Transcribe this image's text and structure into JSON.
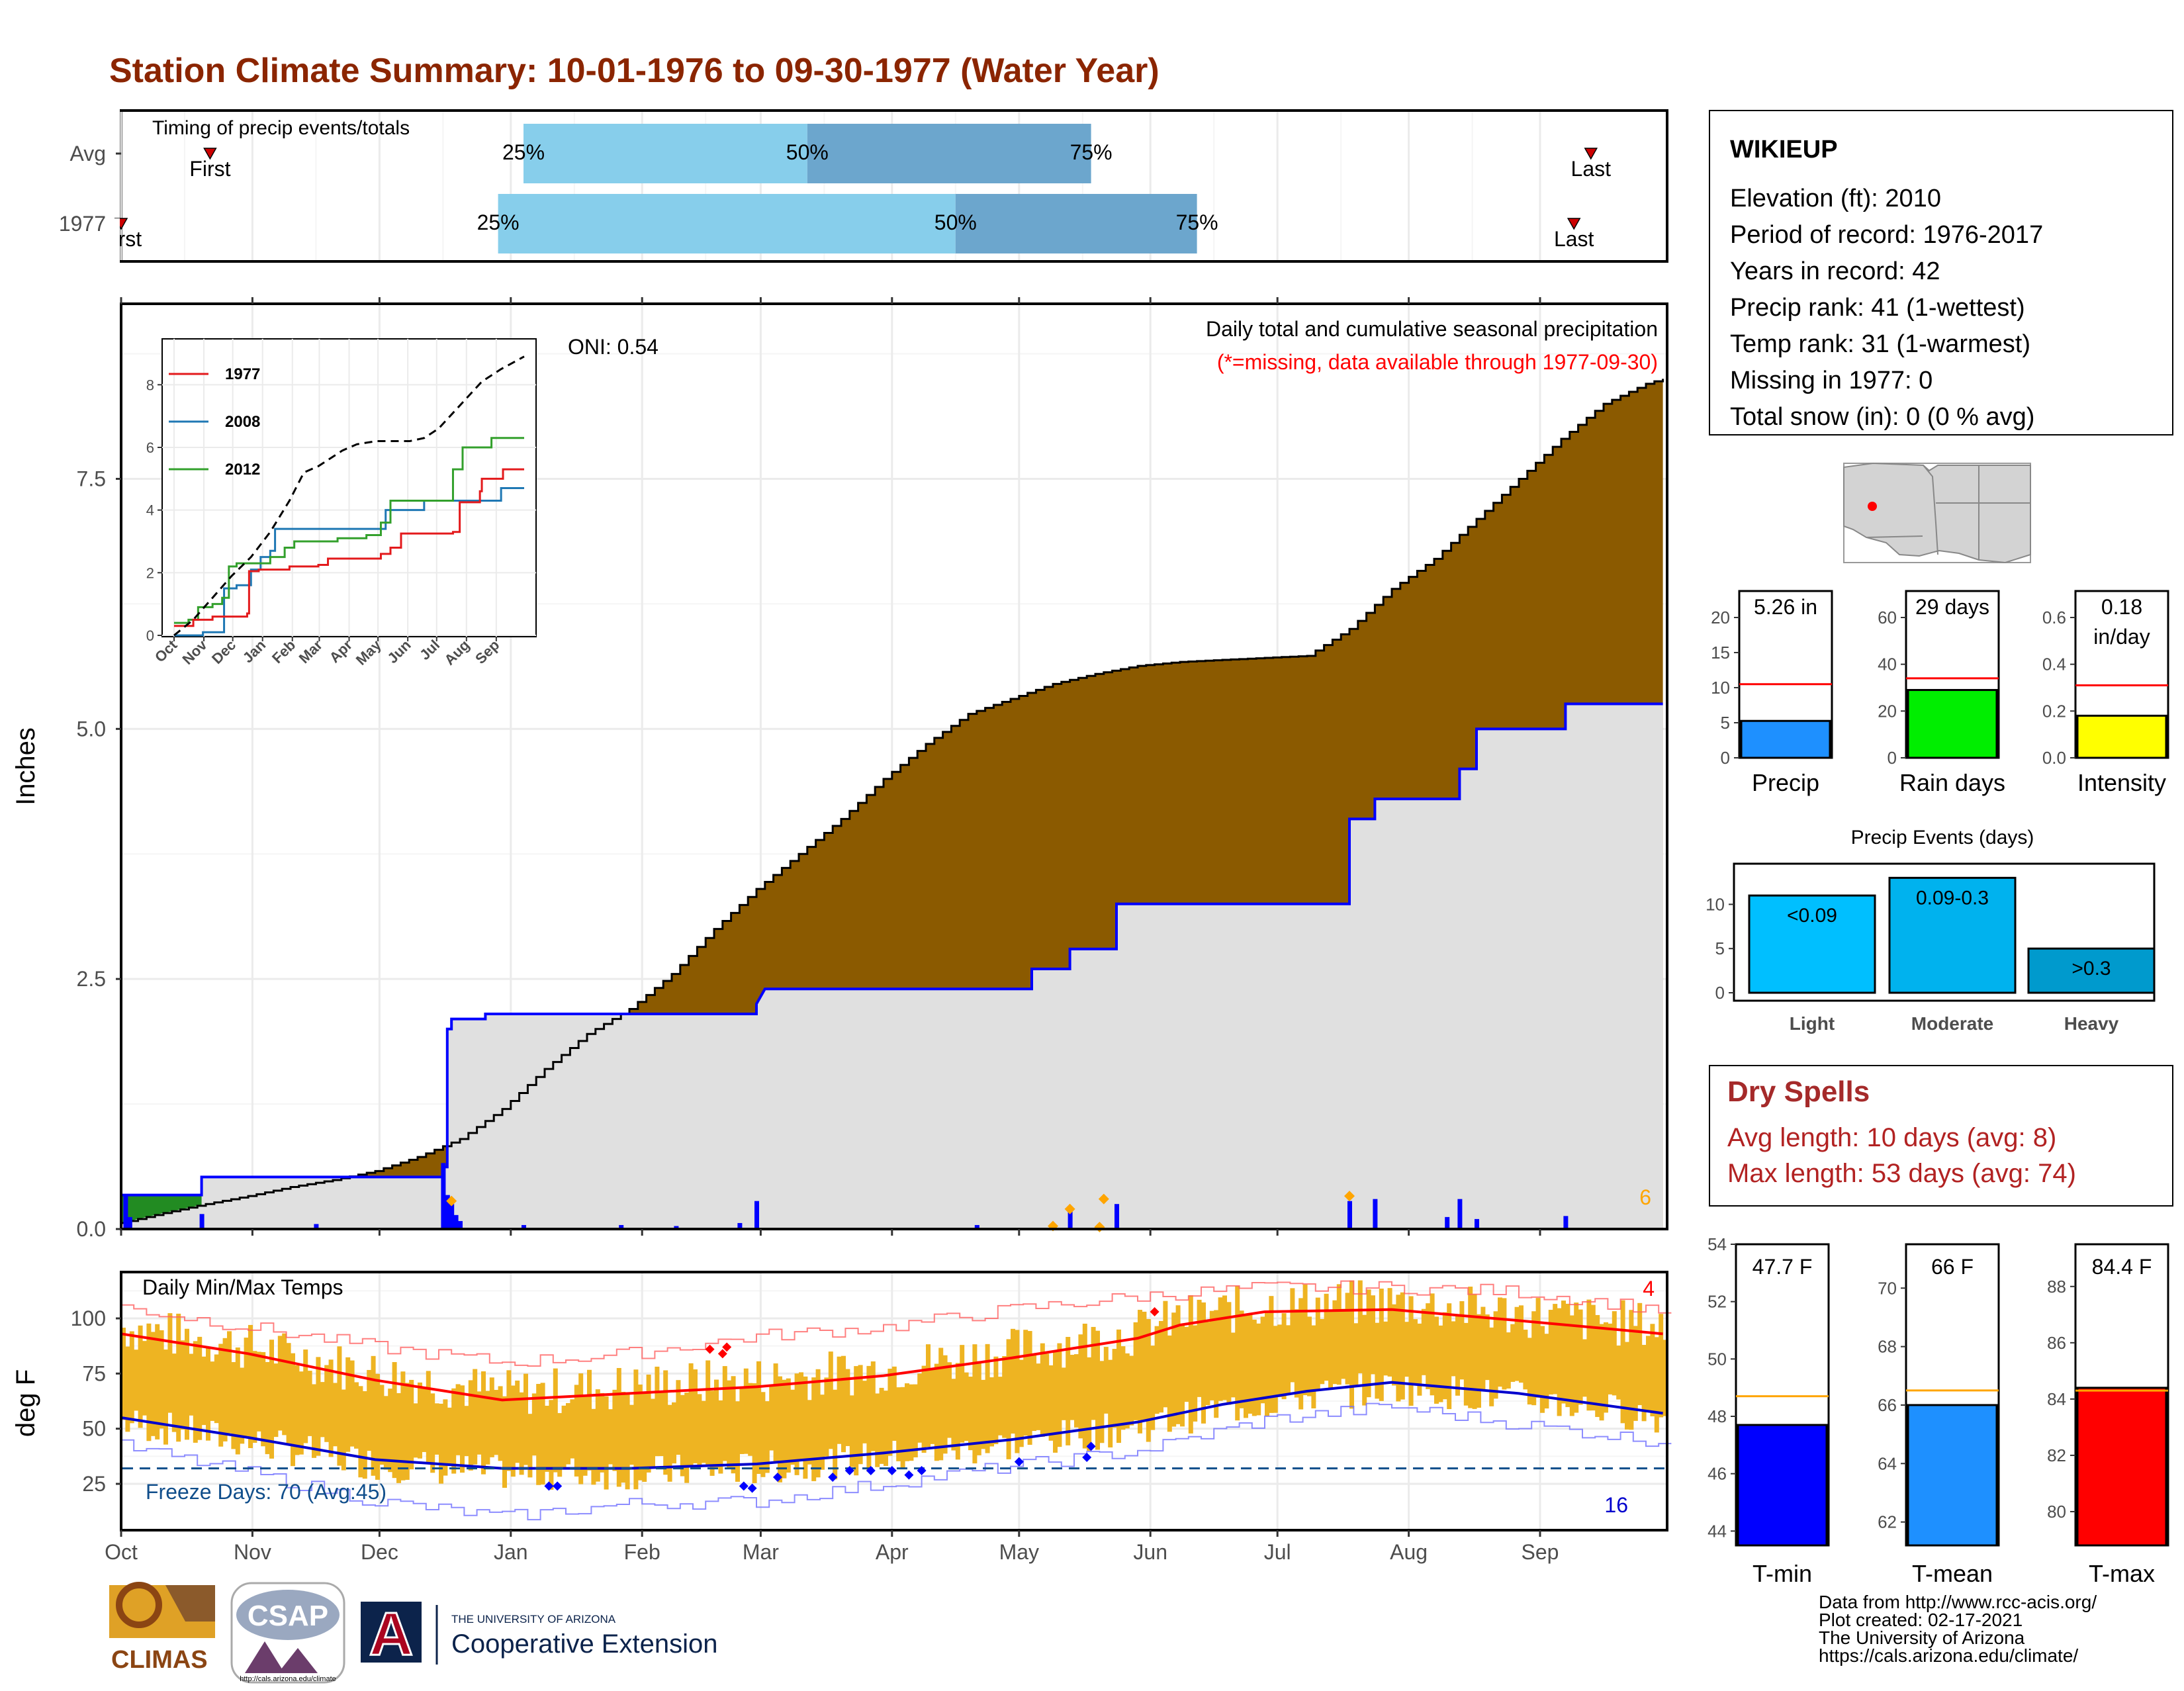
{
  "title": "Station Climate Summary: 10-01-1976 to 09-30-1977 (Water Year)",
  "months": [
    "Oct",
    "Nov",
    "Dec",
    "Jan",
    "Feb",
    "Mar",
    "Apr",
    "May",
    "Jun",
    "Jul",
    "Aug",
    "Sep"
  ],
  "timing": {
    "title": "Timing of precip events/totals",
    "rows": [
      {
        "label": "Avg",
        "first_label": "First",
        "last_label": "Last",
        "p25": "25%",
        "p50": "50%",
        "p75": "75%",
        "first_day": 21,
        "q25_day": 95,
        "q50_day": 162,
        "q75_day": 229,
        "last_day": 347
      },
      {
        "label": "1977",
        "first_label": "First",
        "last_label": "Last",
        "p25": "25%",
        "p50": "50%",
        "p75": "75%",
        "first_day": 0,
        "q25_day": 89,
        "q50_day": 197,
        "q75_day": 254,
        "last_day": 343
      }
    ]
  },
  "precip": {
    "ylabel": "Inches",
    "yticks": [
      "0.0",
      "2.5",
      "5.0",
      "7.5"
    ],
    "caption": "Daily total and cumulative seasonal precipitation",
    "missing_note": "(*=missing, data available through 1977-09-30)",
    "oni": "ONI: 0.54",
    "corner_count": "6",
    "avg_cumulative": [
      [
        0,
        0.06
      ],
      [
        10,
        0.16
      ],
      [
        20,
        0.25
      ],
      [
        30,
        0.33
      ],
      [
        40,
        0.42
      ],
      [
        50,
        0.49
      ],
      [
        60,
        0.58
      ],
      [
        70,
        0.72
      ],
      [
        80,
        0.9
      ],
      [
        90,
        1.2
      ],
      [
        100,
        1.6
      ],
      [
        110,
        1.95
      ],
      [
        120,
        2.2
      ],
      [
        130,
        2.55
      ],
      [
        140,
        3.0
      ],
      [
        150,
        3.4
      ],
      [
        160,
        3.75
      ],
      [
        170,
        4.1
      ],
      [
        180,
        4.5
      ],
      [
        190,
        4.85
      ],
      [
        200,
        5.15
      ],
      [
        210,
        5.3
      ],
      [
        220,
        5.45
      ],
      [
        230,
        5.55
      ],
      [
        240,
        5.63
      ],
      [
        250,
        5.67
      ],
      [
        260,
        5.69
      ],
      [
        270,
        5.71
      ],
      [
        280,
        5.73
      ],
      [
        290,
        6.0
      ],
      [
        300,
        6.4
      ],
      [
        310,
        6.7
      ],
      [
        320,
        7.1
      ],
      [
        330,
        7.5
      ],
      [
        340,
        7.9
      ],
      [
        350,
        8.25
      ],
      [
        360,
        8.45
      ],
      [
        364,
        8.5
      ]
    ],
    "obs_cumulative": [
      [
        0,
        0.34
      ],
      [
        19,
        0.34
      ],
      [
        19,
        0.52
      ],
      [
        76,
        0.52
      ],
      [
        76,
        0.62
      ],
      [
        77,
        0.62
      ],
      [
        77,
        2.0
      ],
      [
        78,
        2.0
      ],
      [
        78,
        2.1
      ],
      [
        86,
        2.1
      ],
      [
        86,
        2.15
      ],
      [
        150,
        2.15
      ],
      [
        150,
        2.25
      ],
      [
        152,
        2.4
      ],
      [
        215,
        2.4
      ],
      [
        215,
        2.6
      ],
      [
        224,
        2.6
      ],
      [
        224,
        2.8
      ],
      [
        235,
        2.8
      ],
      [
        235,
        3.25
      ],
      [
        290,
        3.25
      ],
      [
        290,
        4.1
      ],
      [
        296,
        4.1
      ],
      [
        296,
        4.3
      ],
      [
        316,
        4.3
      ],
      [
        316,
        4.6
      ],
      [
        320,
        4.6
      ],
      [
        320,
        5.0
      ],
      [
        341,
        5.0
      ],
      [
        341,
        5.25
      ],
      [
        364,
        5.25
      ]
    ],
    "daily_bars": [
      [
        1,
        0.34
      ],
      [
        2,
        0.12
      ],
      [
        19,
        0.15
      ],
      [
        46,
        0.05
      ],
      [
        76,
        0.66
      ],
      [
        77,
        0.34
      ],
      [
        78,
        0.25
      ],
      [
        79,
        0.14
      ],
      [
        80,
        0.08
      ],
      [
        95,
        0.04
      ],
      [
        118,
        0.04
      ],
      [
        131,
        0.03
      ],
      [
        146,
        0.06
      ],
      [
        150,
        0.28
      ],
      [
        202,
        0.04
      ],
      [
        224,
        0.2
      ],
      [
        235,
        0.25
      ],
      [
        290,
        0.28
      ],
      [
        296,
        0.3
      ],
      [
        313,
        0.12
      ],
      [
        316,
        0.3
      ],
      [
        320,
        0.1
      ],
      [
        341,
        0.13
      ]
    ],
    "missing_marks": [
      [
        78,
        0.28
      ],
      [
        220,
        0.03
      ],
      [
        224,
        0.2
      ],
      [
        231,
        0.02
      ],
      [
        232,
        0.3
      ],
      [
        290,
        0.33
      ]
    ]
  },
  "inset": {
    "yticks": [
      "0",
      "2",
      "4",
      "6",
      "8"
    ],
    "legend": [
      {
        "name": "1977",
        "color": "#e31a1c"
      },
      {
        "name": "2008",
        "color": "#1f78b4"
      },
      {
        "name": "2012",
        "color": "#33a02c"
      }
    ],
    "series": {
      "avg": [
        [
          0,
          0
        ],
        [
          20,
          0.5
        ],
        [
          40,
          1.2
        ],
        [
          60,
          1.9
        ],
        [
          80,
          2.5
        ],
        [
          100,
          3.3
        ],
        [
          120,
          4.3
        ],
        [
          135,
          5.2
        ],
        [
          150,
          5.4
        ],
        [
          175,
          5.9
        ],
        [
          190,
          6.1
        ],
        [
          210,
          6.2
        ],
        [
          230,
          6.2
        ],
        [
          245,
          6.2
        ],
        [
          260,
          6.3
        ],
        [
          275,
          6.6
        ],
        [
          290,
          7.1
        ],
        [
          305,
          7.6
        ],
        [
          320,
          8.1
        ],
        [
          340,
          8.5
        ],
        [
          364,
          8.9
        ]
      ],
      "y1977": [
        [
          0,
          0.3
        ],
        [
          20,
          0.5
        ],
        [
          40,
          0.6
        ],
        [
          60,
          0.6
        ],
        [
          76,
          0.7
        ],
        [
          78,
          2.05
        ],
        [
          88,
          2.1
        ],
        [
          120,
          2.2
        ],
        [
          150,
          2.25
        ],
        [
          160,
          2.45
        ],
        [
          215,
          2.6
        ],
        [
          225,
          2.8
        ],
        [
          236,
          3.25
        ],
        [
          290,
          3.3
        ],
        [
          297,
          4.25
        ],
        [
          318,
          4.6
        ],
        [
          320,
          5.0
        ],
        [
          342,
          5.3
        ],
        [
          364,
          5.3
        ]
      ],
      "y2008": [
        [
          0,
          0.0
        ],
        [
          30,
          0.1
        ],
        [
          51,
          0.1
        ],
        [
          52,
          1.5
        ],
        [
          65,
          1.6
        ],
        [
          80,
          2.1
        ],
        [
          90,
          2.5
        ],
        [
          100,
          2.7
        ],
        [
          105,
          3.4
        ],
        [
          170,
          3.4
        ],
        [
          200,
          3.4
        ],
        [
          216,
          3.4
        ],
        [
          220,
          4.0
        ],
        [
          260,
          4.3
        ],
        [
          300,
          4.3
        ],
        [
          340,
          4.7
        ],
        [
          364,
          4.7
        ]
      ],
      "y2012": [
        [
          0,
          0.4
        ],
        [
          15,
          0.5
        ],
        [
          25,
          0.9
        ],
        [
          40,
          1.0
        ],
        [
          50,
          1.2
        ],
        [
          57,
          2.2
        ],
        [
          65,
          2.3
        ],
        [
          100,
          2.5
        ],
        [
          115,
          2.8
        ],
        [
          125,
          3.0
        ],
        [
          170,
          3.1
        ],
        [
          200,
          3.2
        ],
        [
          215,
          3.6
        ],
        [
          225,
          4.3
        ],
        [
          260,
          4.3
        ],
        [
          290,
          5.3
        ],
        [
          300,
          6.0
        ],
        [
          330,
          6.3
        ],
        [
          364,
          6.3
        ]
      ]
    }
  },
  "temps": {
    "ylabel": "deg F",
    "yticks": [
      "25",
      "50",
      "75",
      "100"
    ],
    "title": "Daily Min/Max Temps",
    "freeze_label": "Freeze Days: 70 (Avg:45)",
    "top_count": "4",
    "bottom_count": "16",
    "freeze_threshold": 32,
    "max_normal": [
      [
        0,
        93
      ],
      [
        30,
        84
      ],
      [
        60,
        72
      ],
      [
        90,
        63
      ],
      [
        120,
        66
      ],
      [
        150,
        69
      ],
      [
        180,
        74
      ],
      [
        210,
        82
      ],
      [
        240,
        91
      ],
      [
        250,
        97
      ],
      [
        270,
        103
      ],
      [
        300,
        104
      ],
      [
        330,
        99
      ],
      [
        364,
        93
      ]
    ],
    "min_normal": [
      [
        0,
        55
      ],
      [
        30,
        46
      ],
      [
        60,
        36
      ],
      [
        90,
        32
      ],
      [
        120,
        32
      ],
      [
        150,
        34
      ],
      [
        180,
        39
      ],
      [
        210,
        45
      ],
      [
        240,
        53
      ],
      [
        260,
        61
      ],
      [
        280,
        67
      ],
      [
        300,
        71
      ],
      [
        330,
        66
      ],
      [
        364,
        57
      ]
    ],
    "record_high": [
      [
        0,
        105
      ],
      [
        30,
        96
      ],
      [
        60,
        87
      ],
      [
        90,
        80
      ],
      [
        120,
        84
      ],
      [
        150,
        92
      ],
      [
        180,
        96
      ],
      [
        210,
        104
      ],
      [
        240,
        110
      ],
      [
        270,
        114
      ],
      [
        300,
        114
      ],
      [
        330,
        112
      ],
      [
        364,
        104
      ]
    ],
    "record_low": [
      [
        0,
        42
      ],
      [
        30,
        30
      ],
      [
        60,
        17
      ],
      [
        90,
        10
      ],
      [
        120,
        16
      ],
      [
        150,
        17
      ],
      [
        180,
        25
      ],
      [
        210,
        33
      ],
      [
        240,
        40
      ],
      [
        270,
        54
      ],
      [
        300,
        60
      ],
      [
        330,
        52
      ],
      [
        364,
        44
      ]
    ],
    "cold_marks": [
      [
        101,
        24
      ],
      [
        103,
        24
      ],
      [
        147,
        24
      ],
      [
        149,
        23
      ],
      [
        155,
        28
      ],
      [
        168,
        28
      ],
      [
        172,
        31
      ],
      [
        177,
        31
      ],
      [
        182,
        31
      ],
      [
        186,
        29
      ],
      [
        189,
        31
      ],
      [
        212,
        35
      ],
      [
        228,
        37
      ],
      [
        229,
        42
      ]
    ],
    "hot_marks": [
      [
        139,
        86
      ],
      [
        142,
        84
      ],
      [
        143,
        87
      ],
      [
        244,
        103
      ]
    ]
  },
  "station": {
    "name": "WIKIEUP",
    "lines": [
      "Elevation (ft): 2010",
      "Period of record: 1976-2017",
      "Years in record: 42",
      "Precip rank: 41 (1-wettest)",
      "Temp rank: 31 (1-warmest)",
      "Missing in 1977: 0",
      "Total snow (in): 0 (0 % avg)"
    ]
  },
  "precip_panels": [
    {
      "label": "Precip",
      "value_text": "5.26 in",
      "value": 5.26,
      "avg": 10.5,
      "max": 20,
      "yticks": [
        "0",
        "5",
        "10",
        "15",
        "20"
      ],
      "color": "#1e90ff"
    },
    {
      "label": "Rain days",
      "value_text": "29 days",
      "value": 29,
      "avg": 34,
      "max": 60,
      "yticks": [
        "0",
        "20",
        "40",
        "60"
      ],
      "color": "#00ee00"
    },
    {
      "label": "Intensity",
      "value_text": "0.18",
      "value_text2": "in/day",
      "value": 0.18,
      "avg": 0.31,
      "max": 0.6,
      "yticks": [
        "0.0",
        "0.2",
        "0.4",
        "0.6"
      ],
      "color": "#ffff00"
    }
  ],
  "events": {
    "title": "Precip Events (days)",
    "yticks": [
      "0",
      "5",
      "10"
    ],
    "bars": [
      {
        "label": "Light",
        "value_text": "<0.09",
        "value": 11,
        "color": "#00bfff"
      },
      {
        "label": "Moderate",
        "value_text": "0.09-0.3",
        "value": 13,
        "color": "#00b2ee"
      },
      {
        "label": "Heavy",
        "value_text": ">0.3",
        "value": 5,
        "color": "#009acd"
      }
    ]
  },
  "dry_spells": {
    "title": "Dry Spells",
    "avg_line": "Avg length: 10 days (avg: 8)",
    "max_line": "Max length: 53 days (avg: 74)"
  },
  "temp_panels": [
    {
      "label": "T-min",
      "value_text": "47.7 F",
      "value": 47.7,
      "avg": 48.7,
      "min": 43.5,
      "max": 54,
      "ticks": [
        44,
        46,
        48,
        50,
        52,
        54
      ],
      "color": "#0000ff"
    },
    {
      "label": "T-mean",
      "value_text": "66 F",
      "value": 66.0,
      "avg": 66.5,
      "min": 61.2,
      "max": 71.5,
      "ticks": [
        62,
        64,
        66,
        68,
        70
      ],
      "color": "#1e90ff"
    },
    {
      "label": "T-max",
      "value_text": "84.4 F",
      "value": 84.4,
      "avg": 84.3,
      "min": 78.8,
      "max": 89.5,
      "ticks": [
        80,
        82,
        84,
        86,
        88
      ],
      "color": "#ff0000"
    }
  ],
  "credits": [
    "Data from http://www.rcc-acis.org/",
    "Plot created: 02-17-2021",
    "The University of Arizona",
    "https://cals.arizona.edu/climate/"
  ],
  "logos": {
    "climas": "CLIMAS",
    "csap": "CSAP",
    "csap_url": "http://cals.arizona.edu/climate",
    "ua_small": "THE UNIVERSITY OF ARIZONA",
    "ua_large": "Cooperative Extension",
    "ua_letter": "A"
  }
}
